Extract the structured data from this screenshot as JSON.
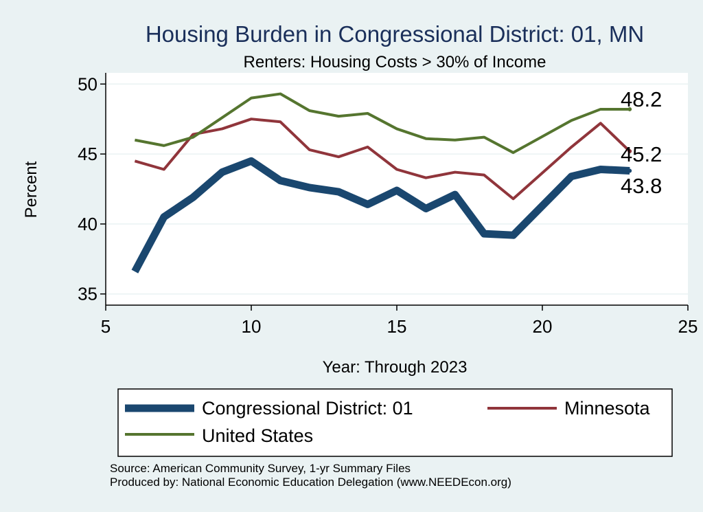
{
  "chart_data": {
    "type": "line",
    "title": "Housing Burden in Congressional District:  01, MN",
    "subtitle": "Renters: Housing Costs > 30% of Income",
    "xlabel": "Year: Through 2023",
    "ylabel": "Percent",
    "xlim": [
      5,
      25
    ],
    "ylim": [
      34.2,
      50.8
    ],
    "xticks": [
      5,
      10,
      15,
      20,
      25
    ],
    "yticks": [
      35,
      40,
      45,
      50
    ],
    "grid": true,
    "legend_position": "bottom",
    "series": [
      {
        "name": "Congressional District:  01",
        "color": "#1a476f",
        "x": [
          6,
          7,
          8,
          9,
          10,
          11,
          12,
          13,
          14,
          15,
          16,
          17,
          18,
          19,
          21,
          22,
          23
        ],
        "y": [
          36.6,
          40.5,
          41.9,
          43.7,
          44.5,
          43.1,
          42.6,
          42.3,
          41.4,
          42.4,
          41.1,
          42.1,
          39.3,
          39.2,
          43.4,
          43.9,
          43.8
        ],
        "end_label": "43.8"
      },
      {
        "name": "Minnesota",
        "color": "#90353b",
        "x": [
          6,
          7,
          8,
          9,
          10,
          11,
          12,
          13,
          14,
          15,
          16,
          17,
          18,
          19,
          21,
          22,
          23
        ],
        "y": [
          44.5,
          43.9,
          46.4,
          46.8,
          47.5,
          47.3,
          45.3,
          44.8,
          45.5,
          43.9,
          43.3,
          43.7,
          43.5,
          41.8,
          45.5,
          47.2,
          45.2
        ],
        "end_label": "45.2"
      },
      {
        "name": "United States",
        "color": "#55752f",
        "x": [
          6,
          7,
          8,
          9,
          10,
          11,
          12,
          13,
          14,
          15,
          16,
          17,
          18,
          19,
          21,
          22,
          23
        ],
        "y": [
          46.0,
          45.6,
          46.2,
          47.6,
          49.0,
          49.3,
          48.1,
          47.7,
          47.9,
          46.8,
          46.1,
          46.0,
          46.2,
          45.1,
          47.4,
          48.2,
          48.2
        ],
        "end_label": "48.2"
      }
    ]
  },
  "footer": {
    "source": "Source: American Community Survey, 1-yr Summary Files",
    "produced_by": "Produced by: National Economic Education Delegation (www.NEEDEcon.org)"
  }
}
